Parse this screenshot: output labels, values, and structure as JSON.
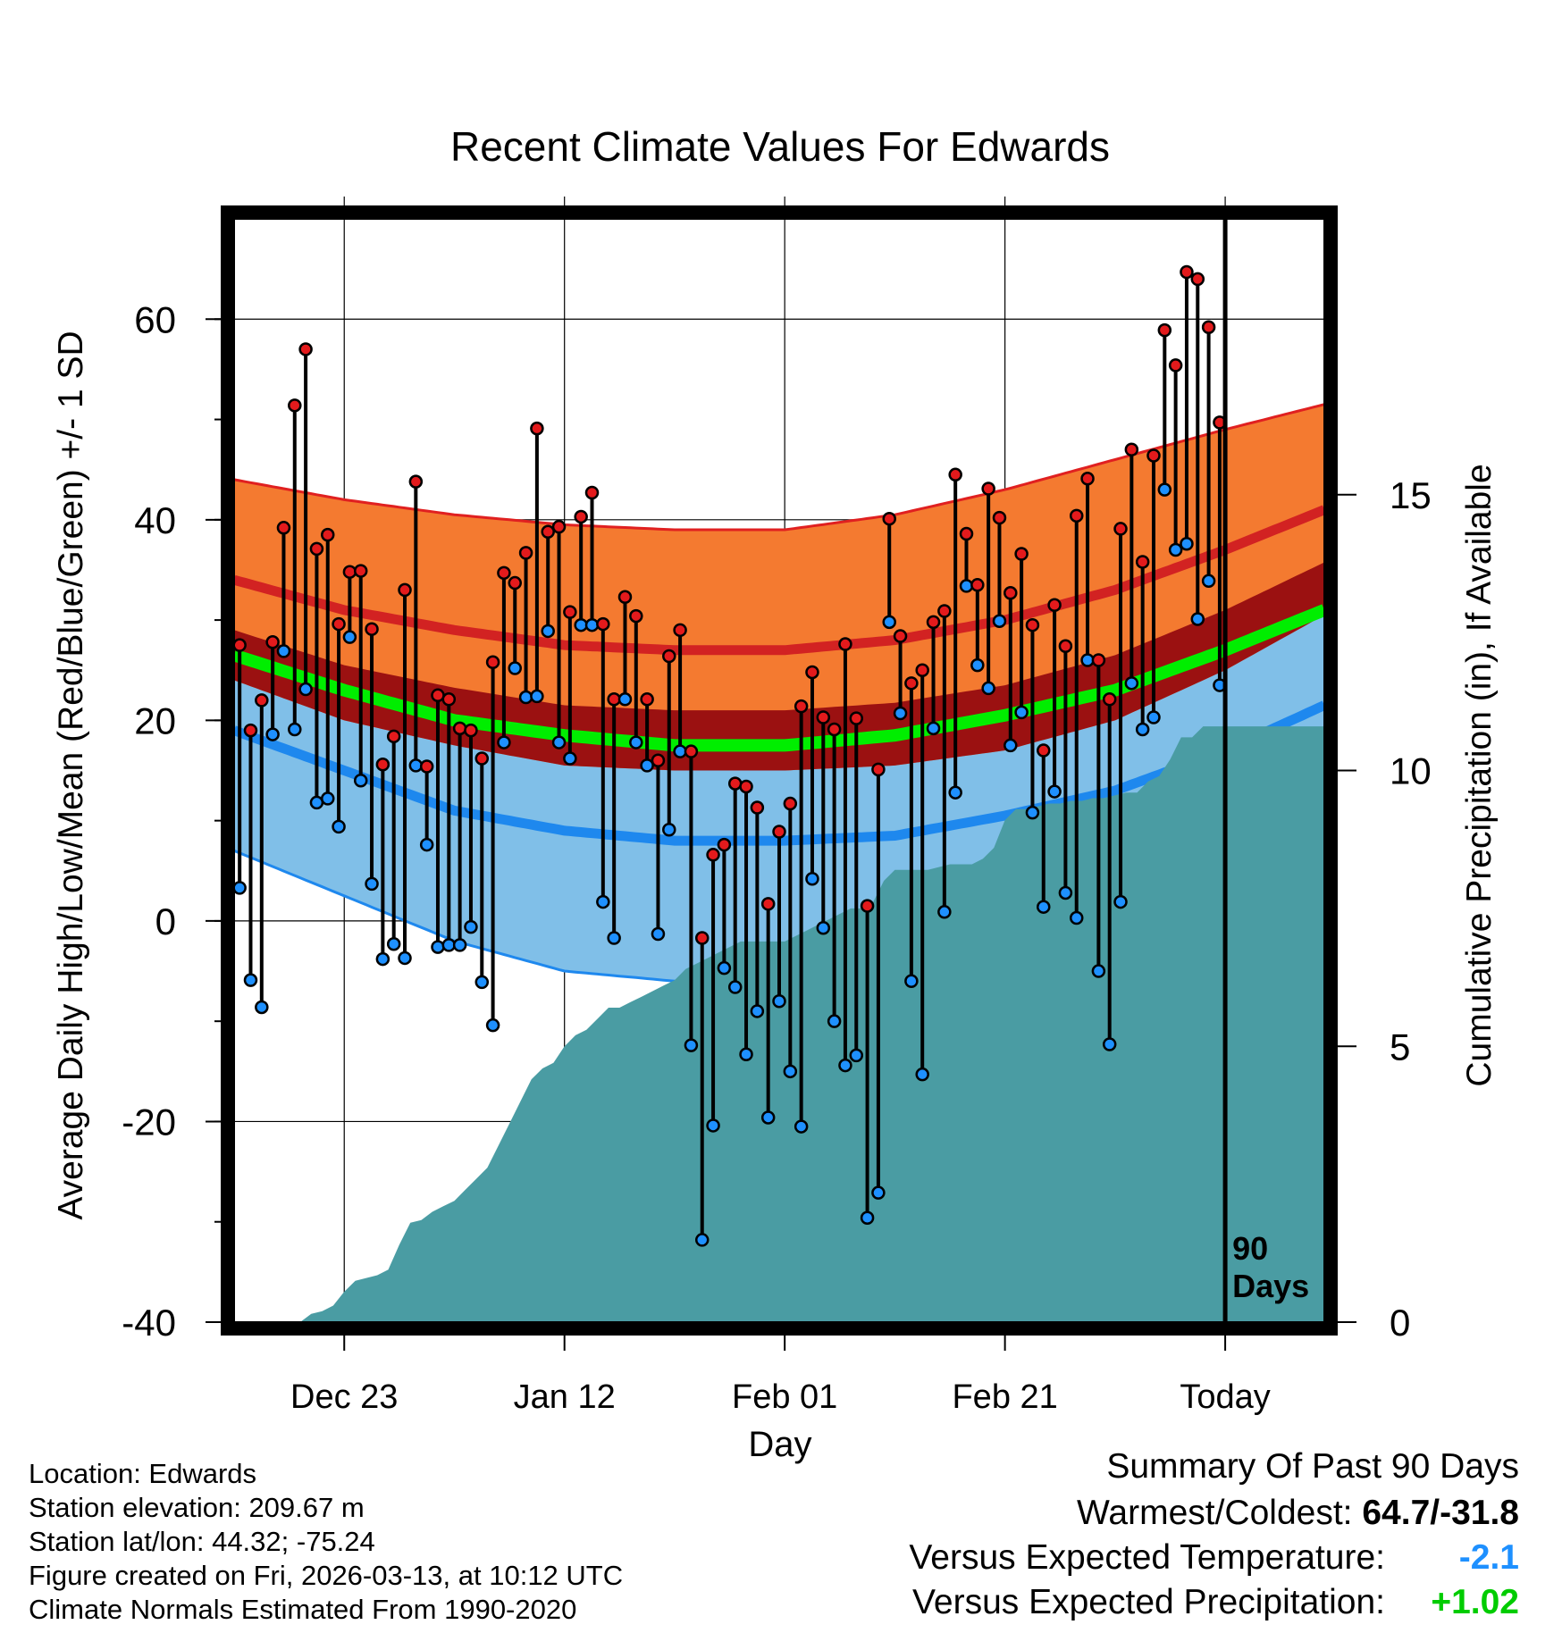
{
  "chart_data": {
    "type": "line",
    "title": "Recent Climate Values For Edwards",
    "xlabel": "Day",
    "ylabel": "Average Daily High/Low/Mean (Red/Blue/Green) +/- 1 SD",
    "y2label": "Cumulative Precipitation (in), If Available",
    "ylim": [
      -40,
      70
    ],
    "y2lim": [
      0,
      20
    ],
    "xlim": [
      -90,
      9
    ],
    "ytick_labels": [
      "-40",
      "-20",
      "0",
      "20",
      "40",
      "60"
    ],
    "ytick_values": [
      -40,
      -20,
      0,
      20,
      40,
      60
    ],
    "y2tick_labels": [
      "0",
      "5",
      "10",
      "15"
    ],
    "y2tick_values": [
      0,
      5,
      10,
      15
    ],
    "xtick_labels": [
      "Dec 23",
      "Jan 12",
      "Feb 01",
      "Feb 21",
      "Today"
    ],
    "xtick_values": [
      -80,
      -60,
      -40,
      -20,
      0
    ],
    "today_label": "90",
    "today_label2": "Days",
    "grid": true,
    "normals": {
      "x": [
        -90,
        -80,
        -70,
        -60,
        -50,
        -40,
        -30,
        -20,
        -10,
        0,
        9
      ],
      "high_mean": [
        34,
        31,
        29,
        27.5,
        27,
        27,
        28,
        30,
        33,
        37,
        41
      ],
      "high_upper": [
        44,
        42,
        40.5,
        39.5,
        39,
        39,
        40.5,
        43,
        46,
        49,
        51.5
      ],
      "low_mean": [
        19,
        15,
        11,
        9,
        8,
        8,
        8.5,
        10.5,
        13,
        17,
        21.5
      ],
      "low_lower": [
        7,
        2.5,
        -2,
        -5,
        -6,
        -5,
        -4,
        -2,
        1,
        5.5,
        11
      ],
      "avg_mean": [
        26.5,
        23,
        20,
        18.5,
        17.5,
        17.5,
        18.5,
        20.5,
        23,
        27,
        31
      ]
    },
    "series": [
      {
        "name": "High",
        "color": "#e31a1c",
        "values": [
          27.5,
          19,
          22,
          27.8,
          39.2,
          51.4,
          57,
          37.1,
          38.5,
          29.6,
          34.8,
          34.9,
          29.1,
          15.6,
          18.4,
          33,
          43.8,
          15.4,
          22.5,
          22.1,
          19.2,
          19,
          16.2,
          25.8,
          34.7,
          33.7,
          36.7,
          49.1,
          38.8,
          39.3,
          30.8,
          40.3,
          42.7,
          29.6,
          22.1,
          32.3,
          30.4,
          22.1,
          16,
          26.4,
          29,
          16.9,
          -1.7,
          6.6,
          7.6,
          13.7,
          13.4,
          11.3,
          1.7,
          8.9,
          11.7,
          21.4,
          24.8,
          20.3,
          19.1,
          27.6,
          20.2,
          1.5,
          15.1,
          40.1,
          28.4,
          23.7,
          25,
          29.8,
          30.9,
          44.5,
          38.6,
          33.5,
          43.1,
          40.2,
          32.7,
          36.6,
          29.5,
          17,
          31.5,
          27.4,
          40.4,
          44.1,
          26,
          22.1,
          39.1,
          47,
          35.8,
          46.4,
          58.9,
          55.4,
          64.7,
          64,
          59.2,
          49.7
        ]
      },
      {
        "name": "Low",
        "color": "#1e90ff",
        "values": [
          3.3,
          -5.9,
          -8.6,
          18.6,
          26.9,
          19.1,
          23.1,
          11.8,
          12.2,
          9.4,
          28.3,
          14,
          3.7,
          -3.8,
          -2.3,
          -3.7,
          15.5,
          7.6,
          -2.6,
          -2.4,
          -2.4,
          -0.6,
          -6.1,
          -10.4,
          17.8,
          25.2,
          22.3,
          22.4,
          28.9,
          17.8,
          16.2,
          29.5,
          29.5,
          1.9,
          -1.7,
          22.1,
          17.8,
          15.5,
          -1.3,
          9.1,
          16.9,
          -12.4,
          -31.8,
          -20.4,
          -4.7,
          -6.6,
          -13.3,
          -9,
          -19.6,
          -8,
          -15,
          -20.5,
          4.2,
          -0.7,
          -10,
          -14.4,
          -13.4,
          -29.6,
          -27.1,
          29.8,
          20.7,
          -6,
          -15.3,
          19.2,
          0.9,
          12.8,
          33.4,
          25.5,
          23.2,
          29.9,
          17.5,
          20.8,
          10.8,
          1.4,
          12.9,
          2.8,
          0.3,
          26,
          -5,
          -12.3,
          1.9,
          23.7,
          19.1,
          20.3,
          43,
          37,
          37.6,
          30.1,
          33.9,
          23.5
        ]
      },
      {
        "name": "Cumulative Precipitation",
        "color": "#4a9ca3",
        "values": [
          0,
          0,
          0,
          0,
          0,
          0,
          0,
          0.15,
          0.2,
          0.3,
          0.55,
          0.75,
          0.8,
          0.85,
          0.95,
          1.4,
          1.8,
          1.85,
          2,
          2.1,
          2.2,
          2.4,
          2.6,
          2.8,
          3.2,
          3.6,
          4,
          4.4,
          4.6,
          4.7,
          5,
          5.2,
          5.3,
          5.5,
          5.7,
          5.7,
          5.8,
          5.9,
          6,
          6.1,
          6.2,
          6.4,
          6.5,
          6.6,
          6.7,
          6.8,
          6.9,
          6.9,
          6.9,
          6.9,
          6.9,
          7,
          7.1,
          7.2,
          7.3,
          7.4,
          7.5,
          7.5,
          7.6,
          8,
          8.2,
          8.2,
          8.2,
          8.2,
          8.25,
          8.3,
          8.3,
          8.3,
          8.4,
          8.6,
          9.1,
          9.3,
          9.3,
          9.35,
          9.4,
          9.4,
          9.45,
          9.45,
          9.5,
          9.5,
          9.55,
          9.6,
          9.6,
          9.8,
          9.9,
          10.2,
          10.6,
          10.6,
          10.8,
          10.8
        ]
      }
    ]
  },
  "info": {
    "location": "Location: Edwards",
    "elevation": "Station elevation: 209.67 m",
    "latlon": "Station lat/lon: 44.32; -75.24",
    "created": "Figure created on Fri, 2026-03-13, at 10:12 UTC",
    "normals": "Climate Normals Estimated From 1990-2020"
  },
  "summary": {
    "title": "Summary Of Past 90 Days",
    "warmest_label": "Warmest/Coldest:",
    "warmest_value": "64.7/-31.8",
    "temp_label": "Versus Expected Temperature:",
    "temp_value": "-2.1",
    "precip_label": "Versus Expected Precipitation:",
    "precip_value": "+1.02"
  }
}
